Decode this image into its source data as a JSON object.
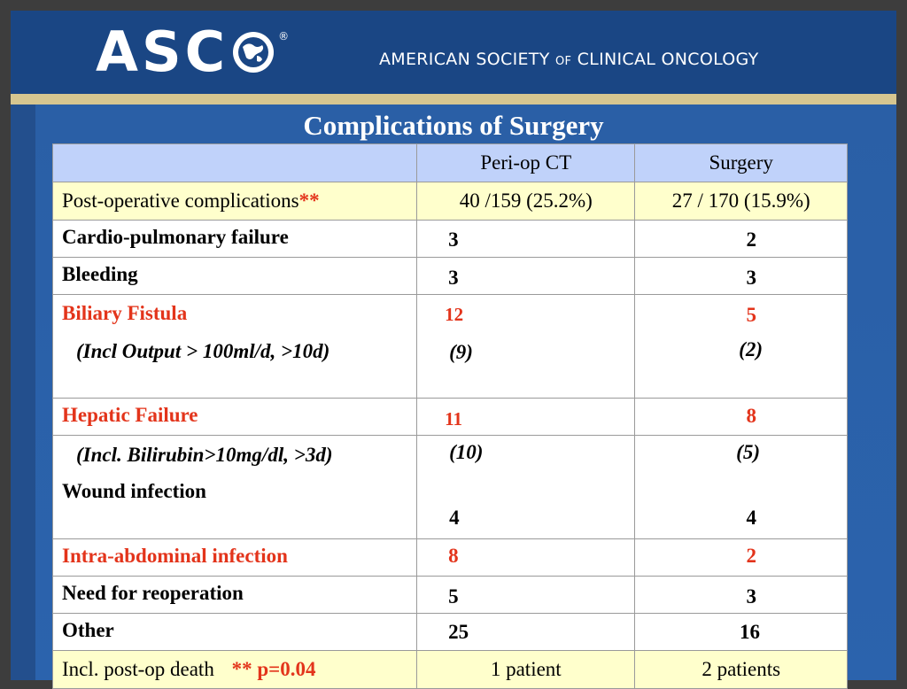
{
  "header": {
    "logo_text": "ASC",
    "registered": "®",
    "org_name_part1": "AMERICAN SOCIETY ",
    "org_name_of": "OF",
    "org_name_part2": " CLINICAL ONCOLOGY"
  },
  "title": "Complications of Surgery",
  "table": {
    "columns": [
      "",
      "Peri-op CT",
      "Surgery"
    ],
    "rows": {
      "post_op": {
        "label": "Post-operative complications",
        "marker": "**",
        "periop": "40 /159 (25.2%)",
        "surgery": "27 / 170 (15.9%)"
      },
      "cardio": {
        "label": "Cardio-pulmonary failure",
        "periop": "3",
        "surgery": "2"
      },
      "bleeding": {
        "label": "Bleeding",
        "periop": "3",
        "surgery": "3"
      },
      "biliary": {
        "label": "Biliary Fistula",
        "periop": "12",
        "surgery": "5",
        "sub_label": "(Incl Output > 100ml/d, >10d)",
        "sub_periop": "(9)",
        "sub_surgery": "(2)"
      },
      "hepatic": {
        "label": "Hepatic Failure",
        "periop": "11",
        "surgery": "8",
        "sub_label": "(Incl. Bilirubin>10mg/dl, >3d)",
        "sub_periop": "(10)",
        "sub_surgery": "(5)"
      },
      "wound": {
        "label": "Wound infection",
        "periop": "4",
        "surgery": "4"
      },
      "intra": {
        "label": "Intra-abdominal infection",
        "periop": "8",
        "surgery": "2"
      },
      "reop": {
        "label": "Need for reoperation",
        "periop": "5",
        "surgery": "3"
      },
      "other": {
        "label": "Other",
        "periop": "25",
        "surgery": "16"
      },
      "death": {
        "label": "Incl. post-op death",
        "marker": "**",
        "pval": "p=0.04",
        "periop": "1 patient",
        "surgery": "2 patients"
      }
    }
  },
  "colors": {
    "background": "#1e4d8c",
    "header_fill": "#c0d2fa",
    "highlight_fill": "#ffffcc",
    "accent_red": "#e3341b"
  }
}
